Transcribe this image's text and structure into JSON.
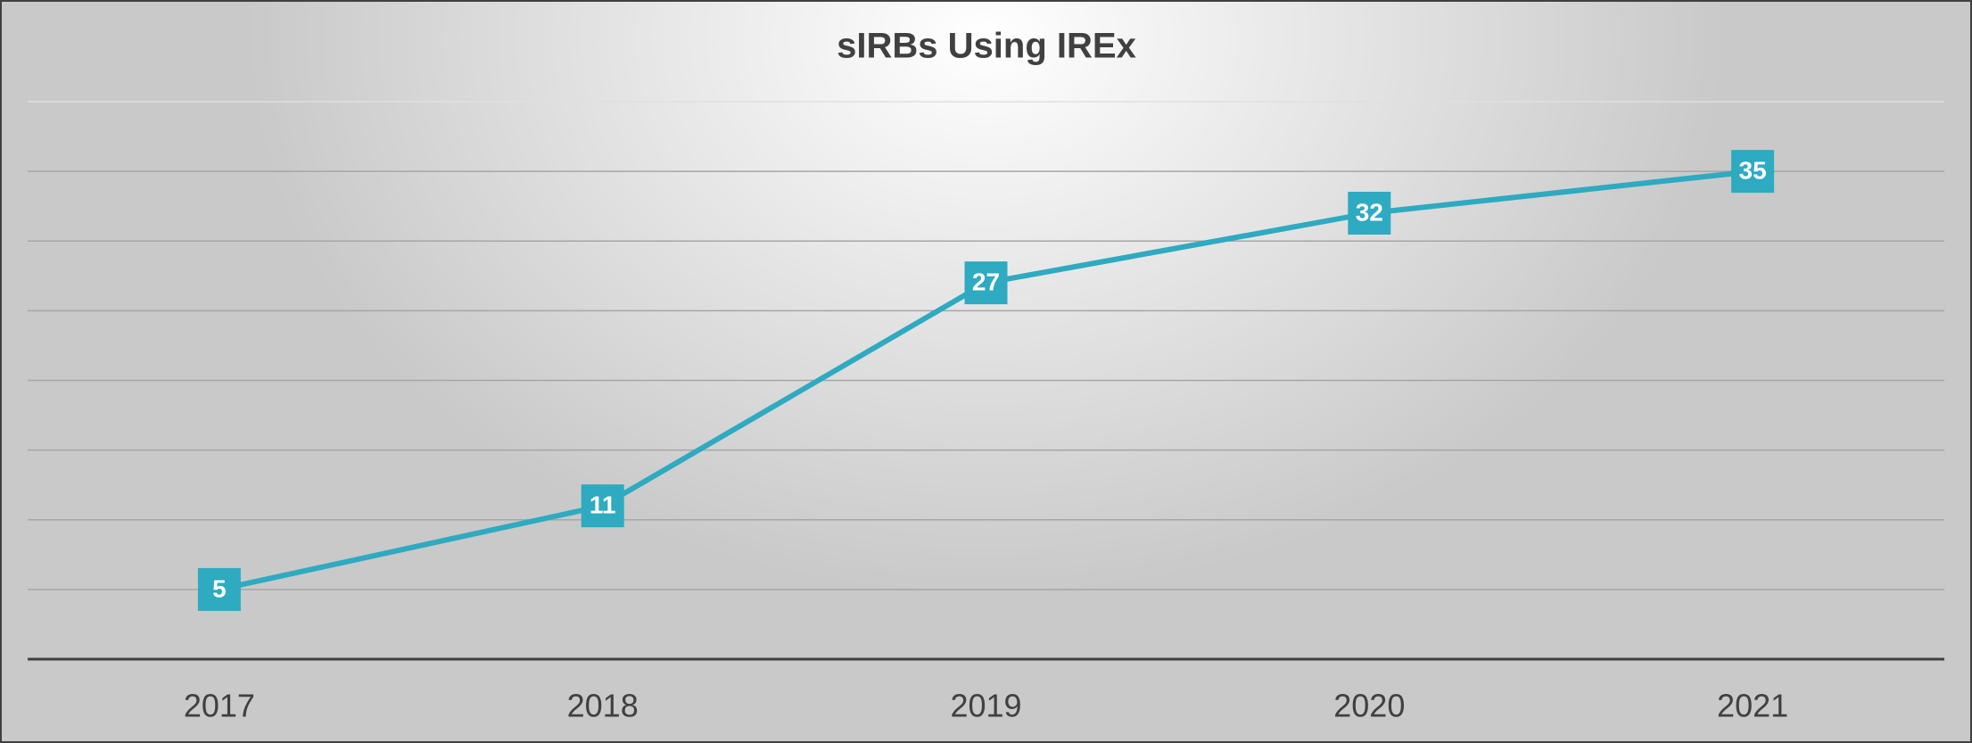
{
  "chart_data": {
    "type": "line",
    "title": "sIRBs Using IREx",
    "categories": [
      "2017",
      "2018",
      "2019",
      "2020",
      "2021"
    ],
    "series": [
      {
        "name": "sIRBs",
        "color": "#2eaac1",
        "values": [
          5,
          11,
          27,
          32,
          35
        ]
      }
    ],
    "ylim": [
      0,
      40
    ],
    "yticks": [
      0,
      5,
      10,
      15,
      20,
      25,
      30,
      35,
      40
    ],
    "grid": true
  }
}
